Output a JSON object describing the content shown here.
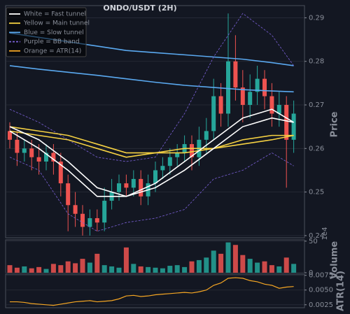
{
  "chart_data": [
    {
      "type": "candlestick",
      "title": "ONDO/USDT (2H)",
      "y_label": "Price",
      "up_color": "#26a69a",
      "down_color": "#ef5350",
      "grid": true,
      "ylim": [
        0.2395,
        0.2928
      ],
      "yticks": [
        0.24,
        0.25,
        0.26,
        0.27,
        0.28,
        0.29
      ],
      "open": [
        0.264,
        0.262,
        0.259,
        0.26,
        0.258,
        0.257,
        0.259,
        0.257,
        0.252,
        0.247,
        0.245,
        0.242,
        0.244,
        0.243,
        0.248,
        0.25,
        0.252,
        0.251,
        0.253,
        0.249,
        0.252,
        0.255,
        0.256,
        0.258,
        0.259,
        0.261,
        0.258,
        0.262,
        0.264,
        0.272,
        0.268,
        0.28,
        0.274,
        0.27,
        0.273,
        0.276,
        0.272,
        0.268,
        0.27,
        0.262
      ],
      "high": [
        0.266,
        0.264,
        0.262,
        0.262,
        0.261,
        0.261,
        0.261,
        0.259,
        0.254,
        0.25,
        0.247,
        0.246,
        0.246,
        0.251,
        0.253,
        0.254,
        0.254,
        0.255,
        0.255,
        0.254,
        0.257,
        0.258,
        0.26,
        0.261,
        0.263,
        0.263,
        0.265,
        0.267,
        0.276,
        0.275,
        0.291,
        0.286,
        0.278,
        0.277,
        0.279,
        0.278,
        0.275,
        0.273,
        0.272,
        0.271
      ],
      "low": [
        0.26,
        0.256,
        0.257,
        0.255,
        0.254,
        0.255,
        0.254,
        0.249,
        0.241,
        0.242,
        0.24,
        0.24,
        0.241,
        0.241,
        0.246,
        0.248,
        0.249,
        0.249,
        0.247,
        0.247,
        0.25,
        0.253,
        0.254,
        0.256,
        0.257,
        0.255,
        0.256,
        0.259,
        0.262,
        0.265,
        0.265,
        0.271,
        0.266,
        0.267,
        0.27,
        0.269,
        0.265,
        0.265,
        0.251,
        0.259
      ],
      "close": [
        0.262,
        0.259,
        0.26,
        0.258,
        0.257,
        0.259,
        0.257,
        0.252,
        0.247,
        0.245,
        0.242,
        0.244,
        0.243,
        0.248,
        0.25,
        0.252,
        0.251,
        0.253,
        0.249,
        0.252,
        0.255,
        0.256,
        0.258,
        0.259,
        0.261,
        0.258,
        0.262,
        0.264,
        0.272,
        0.268,
        0.28,
        0.274,
        0.27,
        0.273,
        0.276,
        0.272,
        0.268,
        0.27,
        0.262,
        0.268
      ],
      "lines": [
        {
          "color": "#5aa9f0",
          "style": "solid",
          "x": [
            0,
            4,
            8,
            12,
            16,
            20,
            24,
            28,
            32,
            36,
            39
          ],
          "values": [
            0.2865,
            0.2855,
            0.2845,
            0.2835,
            0.2825,
            0.282,
            0.2815,
            0.281,
            0.2805,
            0.2797,
            0.279
          ]
        },
        {
          "color": "#5aa9f0",
          "style": "solid",
          "x": [
            0,
            4,
            8,
            12,
            16,
            20,
            24,
            28,
            32,
            36,
            39
          ],
          "values": [
            0.279,
            0.2782,
            0.2775,
            0.2768,
            0.276,
            0.2752,
            0.2745,
            0.274,
            0.2735,
            0.2732,
            0.273
          ]
        },
        {
          "color": "#7b61d9",
          "style": "dashed",
          "x": [
            0,
            4,
            8,
            12,
            16,
            20,
            24,
            28,
            32,
            36,
            39
          ],
          "values": [
            0.269,
            0.266,
            0.262,
            0.258,
            0.257,
            0.258,
            0.268,
            0.281,
            0.291,
            0.286,
            0.279
          ]
        },
        {
          "color": "#7b61d9",
          "style": "dashed",
          "x": [
            0,
            4,
            8,
            12,
            16,
            20,
            24,
            28,
            32,
            36,
            39
          ],
          "values": [
            0.258,
            0.255,
            0.245,
            0.241,
            0.243,
            0.244,
            0.246,
            0.253,
            0.255,
            0.259,
            0.256
          ]
        },
        {
          "color": "#f5d142",
          "style": "solid",
          "x": [
            0,
            4,
            8,
            12,
            16,
            20,
            24,
            28,
            32,
            36,
            39
          ],
          "values": [
            0.265,
            0.264,
            0.263,
            0.261,
            0.259,
            0.259,
            0.26,
            0.26,
            0.262,
            0.263,
            0.263
          ]
        },
        {
          "color": "#f5d142",
          "style": "solid",
          "x": [
            0,
            4,
            8,
            12,
            16,
            20,
            24,
            28,
            32,
            36,
            39
          ],
          "values": [
            0.264,
            0.263,
            0.262,
            0.26,
            0.258,
            0.259,
            0.259,
            0.26,
            0.261,
            0.262,
            0.263
          ]
        },
        {
          "color": "#ffffff",
          "style": "solid",
          "x": [
            0,
            4,
            8,
            12,
            16,
            20,
            24,
            28,
            32,
            36,
            39
          ],
          "values": [
            0.264,
            0.26,
            0.255,
            0.249,
            0.249,
            0.252,
            0.257,
            0.262,
            0.267,
            0.269,
            0.266
          ]
        },
        {
          "color": "#ffffff",
          "style": "solid",
          "x": [
            0,
            4,
            8,
            12,
            16,
            20,
            24,
            28,
            32,
            36,
            39
          ],
          "values": [
            0.265,
            0.262,
            0.257,
            0.251,
            0.249,
            0.251,
            0.255,
            0.26,
            0.265,
            0.267,
            0.266
          ]
        }
      ],
      "legend": [
        {
          "label": "White = Fast tunnel",
          "color": "#ffffff",
          "style": "solid"
        },
        {
          "label": "Yellow = Main tunnel",
          "color": "#f5d142",
          "style": "solid"
        },
        {
          "label": "Blue = Slow tunnel",
          "color": "#5aa9f0",
          "style": "solid"
        },
        {
          "label": "Purple = BB band",
          "color": "#7b61d9",
          "style": "dashed"
        },
        {
          "label": "Orange = ATR(14)",
          "color": "#f5a623",
          "style": "solid"
        }
      ]
    },
    {
      "type": "bar",
      "y_label": "Volume",
      "offset_text": "1e4",
      "ylim": [
        0,
        52
      ],
      "yticks": [
        0,
        50
      ],
      "grid": true,
      "values": [
        12,
        8,
        10,
        7,
        9,
        6,
        14,
        12,
        18,
        15,
        22,
        16,
        30,
        12,
        10,
        8,
        40,
        14,
        10,
        9,
        8,
        7,
        11,
        12,
        9,
        18,
        20,
        24,
        35,
        30,
        48,
        44,
        28,
        22,
        16,
        18,
        12,
        10,
        24,
        14
      ]
    },
    {
      "type": "line",
      "y_label": "ATR(14)",
      "color": "#f5a623",
      "ylim": [
        0.002,
        0.0077
      ],
      "grid": true,
      "yticks": [
        0.0025,
        {
          "value": 0.005,
          "label": "0.0050"
        },
        0.0075
      ],
      "values": [
        0.003,
        0.003,
        0.0029,
        0.0027,
        0.0026,
        0.0025,
        0.0024,
        0.0026,
        0.0028,
        0.003,
        0.0031,
        0.0032,
        0.003,
        0.0031,
        0.0032,
        0.0035,
        0.004,
        0.0041,
        0.0039,
        0.004,
        0.0042,
        0.0043,
        0.0044,
        0.0045,
        0.0046,
        0.0045,
        0.0047,
        0.005,
        0.0058,
        0.0062,
        0.007,
        0.0071,
        0.007,
        0.0066,
        0.0064,
        0.006,
        0.0058,
        0.0053,
        0.0055,
        0.0056
      ]
    }
  ]
}
